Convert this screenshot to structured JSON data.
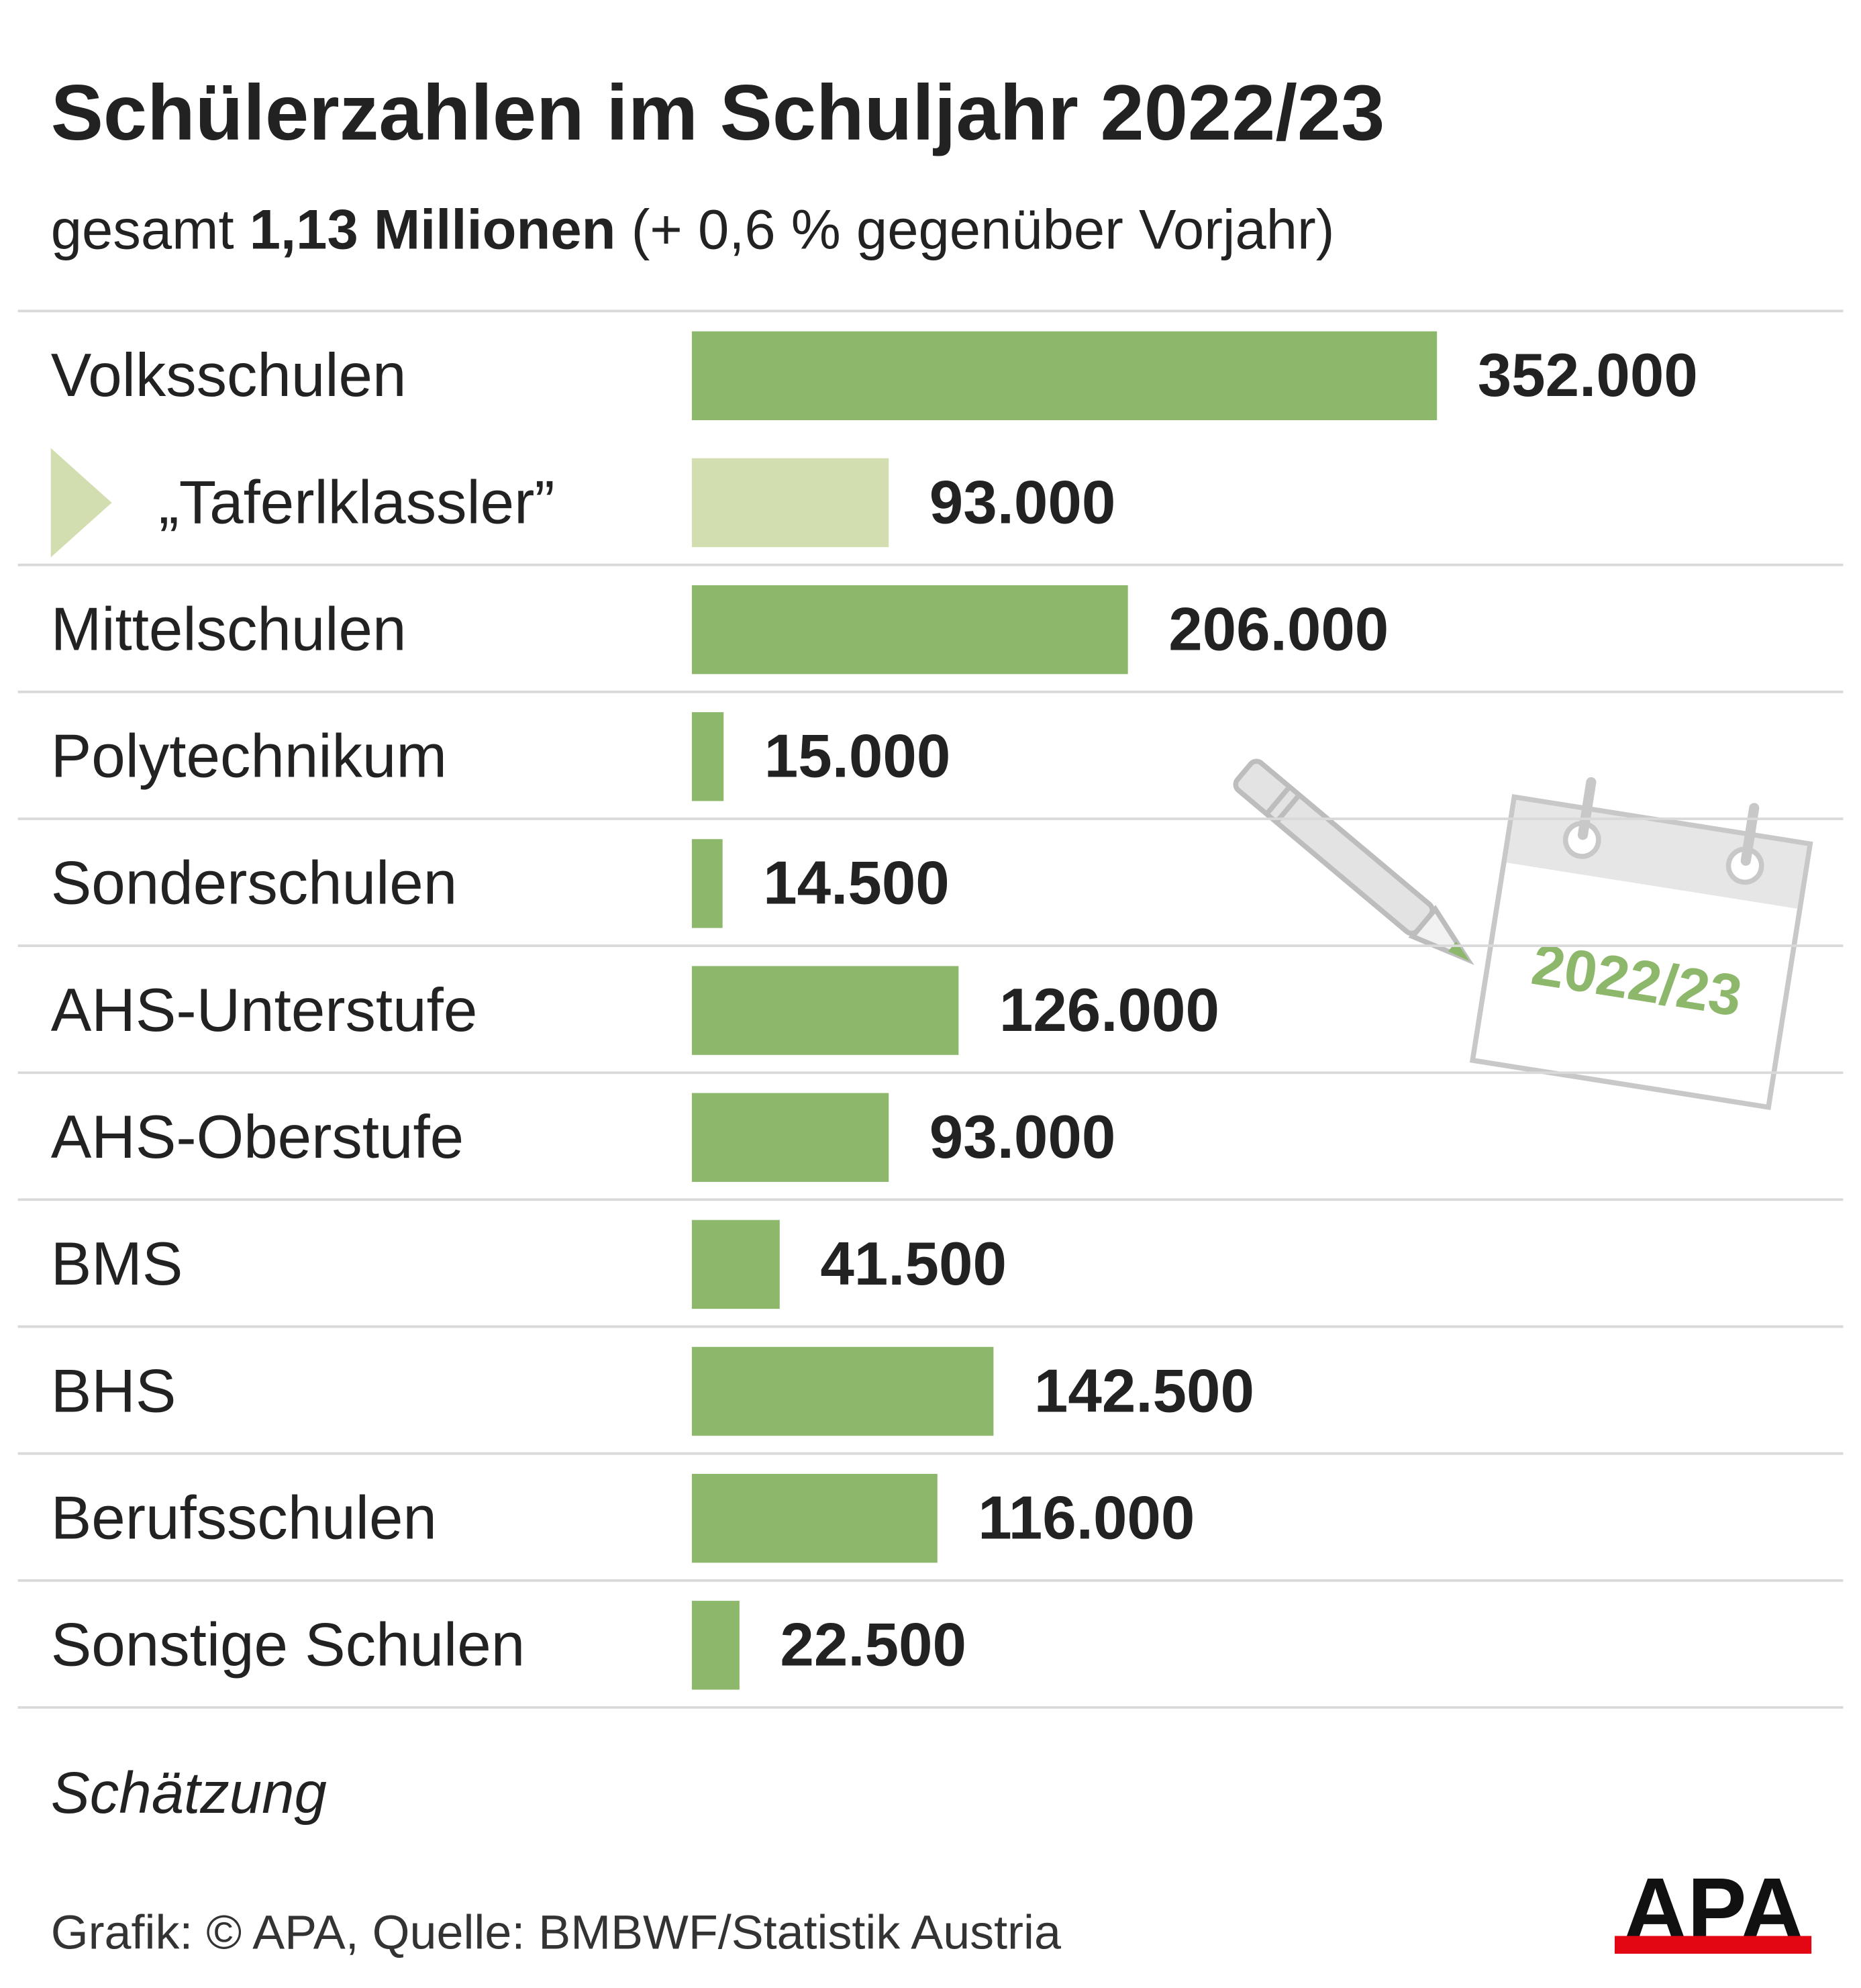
{
  "chart_data": {
    "type": "hbar",
    "title": "Schülerzahlen im Schuljahr 2022/23",
    "subtitle": [
      "gesamt ",
      "1,13 Millionen",
      " (+ 0,6 % gegenüber Vorjahr)"
    ],
    "categories": [
      "Volksschulen",
      "„Taferlklassler”",
      "Mittelschulen",
      "Polytechnikum",
      "Sonderschulen",
      "AHS-Unterstufe",
      "AHS-Oberstufe",
      "BMS",
      "BHS",
      "Berufsschulen",
      "Sonstige Schulen"
    ],
    "values": [
      352000,
      93000,
      206000,
      15000,
      14500,
      126000,
      93000,
      41500,
      142500,
      116000,
      22500
    ],
    "value_labels": [
      "352.000",
      "93.000",
      "206.000",
      "15.000",
      "14.500",
      "126.000",
      "93.000",
      "41.500",
      "142.500",
      "116.000",
      "22.500"
    ],
    "colors": [
      "#8db86b",
      "#d3deb0",
      "#8db86b",
      "#8db86b",
      "#8db86b",
      "#8db86b",
      "#8db86b",
      "#8db86b",
      "#8db86b",
      "#8db86b",
      "#8db86b"
    ],
    "note": "Schätzung",
    "source": "Grafik: © APA, Quelle: BMBWF/Statistik Austria",
    "illustration_label": "2022/23",
    "logo": "APA"
  }
}
